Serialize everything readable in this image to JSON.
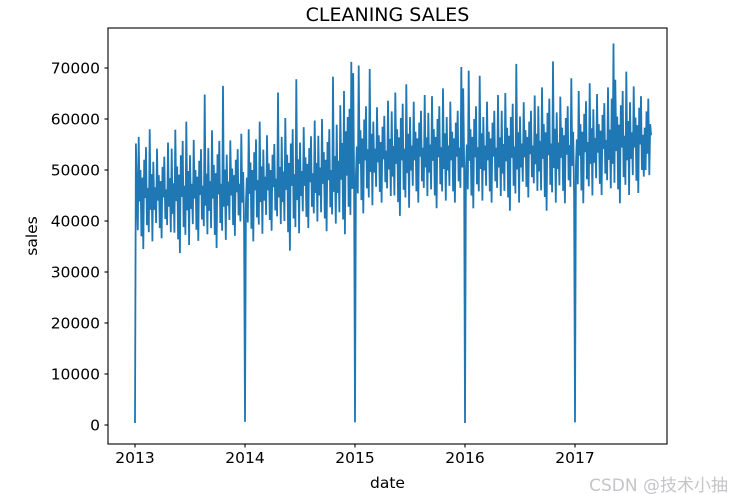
{
  "chart": {
    "title": "CLEANING SALES",
    "xlabel": "date",
    "ylabel": "sales"
  },
  "watermark": {
    "text": "CSDN @技术小抽"
  },
  "chart_data": {
    "type": "line",
    "title": "CLEANING SALES",
    "xlabel": "date",
    "ylabel": "sales",
    "line_color": "#1f77b4",
    "background_color": "#ffffff",
    "grid": false,
    "legend": "none",
    "x_tick_years": [
      2013,
      2014,
      2015,
      2016,
      2017
    ],
    "y_ticks": [
      0,
      10000,
      20000,
      30000,
      40000,
      50000,
      60000,
      70000
    ],
    "x_axis_range_years": [
      2012.755,
      2017.836
    ],
    "y_axis_range": [
      -3700,
      77800
    ],
    "series_description": "Daily cleaning sales 2013-01-01 to ~2017-08; noisy band rising from ~35000-58000 (2013) to ~45000-65000 (2017); sales drop to ~0 every Jan 1; max spike ~75000 around 2017.35; peak cluster ~71000 near 2015.0",
    "x_start_year": 2013.0,
    "points_per_year": 120,
    "values_unit": "thousands of sales",
    "values_k": [
      0.4,
      55.2,
      47,
      38.2,
      56.5,
      43.8,
      50,
      37,
      48.5,
      34.5,
      52,
      44.5,
      54.5,
      39.2,
      46.5,
      37.8,
      58,
      42.2,
      49.2,
      36,
      51.6,
      42.2,
      46.6,
      39.6,
      54.2,
      44,
      49,
      38.6,
      47.8,
      36.6,
      50.6,
      44.6,
      52.6,
      40.4,
      46.2,
      39.2,
      55.4,
      42.8,
      48.4,
      37.8,
      54.2,
      41.4,
      47.4,
      37.7,
      57.9,
      43.9,
      50.7,
      36.4,
      49.1,
      33.7,
      52.9,
      44.7,
      55.7,
      38.8,
      46.9,
      37.3,
      59.5,
      42.1,
      49.8,
      35.3,
      52.9,
      42.4,
      47.3,
      39.4,
      55.9,
      44.4,
      50,
      38.3,
      48.7,
      36.1,
      51.8,
      45.1,
      54.1,
      40.3,
      46.9,
      39,
      64.8,
      43,
      49.3,
      37.4,
      54.3,
      42,
      47.8,
      38.6,
      57.8,
      44.4,
      51,
      37.3,
      49.4,
      34.7,
      53.1,
      45.2,
      55.7,
      39.6,
      47.3,
      38.1,
      66.5,
      42.8,
      50.1,
      36.3,
      53,
      43,
      47.7,
      40.2,
      55.8,
      45,
      50.3,
      39.2,
      49,
      37.1,
      52,
      45.6,
      54.1,
      41.1,
      47.3,
      39.9,
      57.1,
      43.6,
      49.6,
      38.4,
      0.6,
      43,
      48.5,
      39.7,
      58,
      45.3,
      51.5,
      38.5,
      50,
      36,
      53.5,
      46,
      56,
      40.7,
      48,
      39.3,
      59.5,
      43.7,
      50.7,
      37.5,
      54,
      44,
      48.7,
      41.2,
      56.8,
      46,
      51.3,
      40.2,
      50,
      38.1,
      53,
      46.6,
      55.1,
      42.1,
      48.3,
      40.9,
      65.2,
      44.6,
      50.6,
      39.4,
      56.5,
      43.7,
      49.7,
      40,
      60.2,
      46.1,
      53,
      37.8,
      51.4,
      34.2,
      55.2,
      46.9,
      58,
      40.5,
      49.2,
      38.8,
      67.8,
      44.1,
      52.1,
      37.6,
      55.4,
      44.9,
      49.8,
      41.9,
      58.4,
      46.9,
      52.5,
      40.8,
      51.2,
      38.6,
      54.3,
      47.6,
      56.6,
      42.8,
      49.4,
      41.5,
      59.7,
      45.5,
      51.4,
      39.9,
      56.7,
      45,
      50.5,
      41.7,
      60,
      47.3,
      53.5,
      40.5,
      52,
      38,
      55.5,
      48,
      58,
      42.7,
      50,
      41.3,
      68.3,
      45.7,
      52.7,
      39.5,
      58.9,
      45.5,
      51.8,
      41.7,
      62.7,
      48.1,
      55.3,
      40.3,
      65.5,
      37.4,
      57.6,
      48.9,
      60.4,
      42.8,
      62,
      41.2,
      71.2,
      46.3,
      69,
      47.5,
      0.5,
      48.8,
      54.6,
      45.4,
      70.5,
      51.2,
      57.8,
      44.1,
      56.2,
      41.5,
      59.9,
      51.9,
      62.5,
      46.4,
      54.1,
      44.6,
      69.8,
      49.6,
      57.1,
      43.1,
      59.5,
      49.5,
      54.2,
      46.7,
      62.3,
      51.5,
      56.8,
      45.7,
      55.5,
      43.6,
      58.5,
      52.1,
      60.6,
      47.6,
      53.8,
      46.4,
      63.6,
      50.1,
      56.1,
      44.9,
      61.5,
      48.7,
      54.7,
      45,
      65.2,
      51.2,
      58,
      43.7,
      56.4,
      41,
      60.2,
      51.9,
      63,
      46.1,
      54.2,
      44.6,
      66.8,
      49.4,
      57.1,
      42.6,
      60.4,
      49.9,
      54.8,
      46.9,
      63.4,
      51.9,
      57.5,
      45.8,
      56.2,
      43.6,
      59.3,
      52.6,
      61.6,
      47.8,
      54.4,
      46.5,
      64.7,
      50.5,
      56.4,
      44.9,
      61.2,
      49.5,
      55,
      46.2,
      64.5,
      51.8,
      58,
      45,
      56.5,
      42.5,
      60,
      52.5,
      62.5,
      47.2,
      54.5,
      45.8,
      66,
      50.2,
      57.2,
      44,
      60.4,
      49.9,
      54.8,
      46.9,
      63.4,
      51.9,
      57.5,
      45.8,
      56.2,
      43.6,
      59.3,
      52.6,
      61.6,
      47.8,
      54.4,
      46.5,
      70.2,
      50.5,
      66,
      52,
      0.4,
      49.5,
      55,
      46.2,
      69.5,
      51.8,
      58,
      45,
      56.5,
      42.5,
      60,
      52.5,
      62.5,
      47.2,
      54.5,
      45.8,
      68.5,
      50.2,
      57.2,
      44,
      60.4,
      49.9,
      54.8,
      46.9,
      63.4,
      51.9,
      57.5,
      45.8,
      56.2,
      43.6,
      59.3,
      52.6,
      61.6,
      47.8,
      54.4,
      46.5,
      64.7,
      50.5,
      56.4,
      44.9,
      61.6,
      49.3,
      55.1,
      45.9,
      65.1,
      51.7,
      58.3,
      44.6,
      56.7,
      42,
      60.4,
      52.4,
      63,
      46.9,
      54.6,
      45.4,
      70.8,
      50.1,
      57.4,
      43.6,
      60.5,
      50.5,
      55.2,
      47.7,
      63.3,
      52.5,
      57.8,
      46.7,
      56.5,
      44.6,
      59.5,
      53.1,
      61.6,
      48.6,
      54.8,
      47.4,
      64.6,
      51.1,
      57.1,
      45.9,
      62.5,
      49.7,
      55.7,
      46,
      66.2,
      52.2,
      59,
      44.7,
      57.4,
      42,
      61.2,
      52.9,
      64,
      47.1,
      55.2,
      45.6,
      71.3,
      50.4,
      58.1,
      43.6,
      61.3,
      50.2,
      55.4,
      47,
      64.4,
      52.4,
      58.3,
      45.9,
      56.8,
      43.5,
      60.2,
      53,
      62.5,
      48,
      54.9,
      46.7,
      68,
      50.8,
      57.5,
      45,
      0.5,
      50.5,
      56,
      47.2,
      65.5,
      52.8,
      59,
      46,
      57.5,
      43.5,
      61,
      53.5,
      63.5,
      48.2,
      55.5,
      46.8,
      67,
      51.2,
      58.2,
      45,
      61.9,
      51.4,
      56.3,
      48.4,
      64.9,
      53.4,
      59,
      47.3,
      57.7,
      45.1,
      60.8,
      54.1,
      63.1,
      49.3,
      55.9,
      48,
      66.2,
      52,
      57.9,
      46.4,
      64,
      51.2,
      74.8,
      47.5,
      67.7,
      53.7,
      60.5,
      46.2,
      58.9,
      43.5,
      62.7,
      54.4,
      65.5,
      48.6,
      56.7,
      47.1,
      69.3,
      51.9,
      59.6,
      45.1,
      63.3,
      52.2,
      57.4,
      49,
      66.4,
      54.4,
      60.3,
      47.9,
      58.8,
      45.5,
      62.2,
      55,
      64.5,
      50,
      56.9,
      48.7,
      58.3,
      50,
      61.5,
      53.2,
      64,
      49,
      59,
      56.8
    ]
  }
}
